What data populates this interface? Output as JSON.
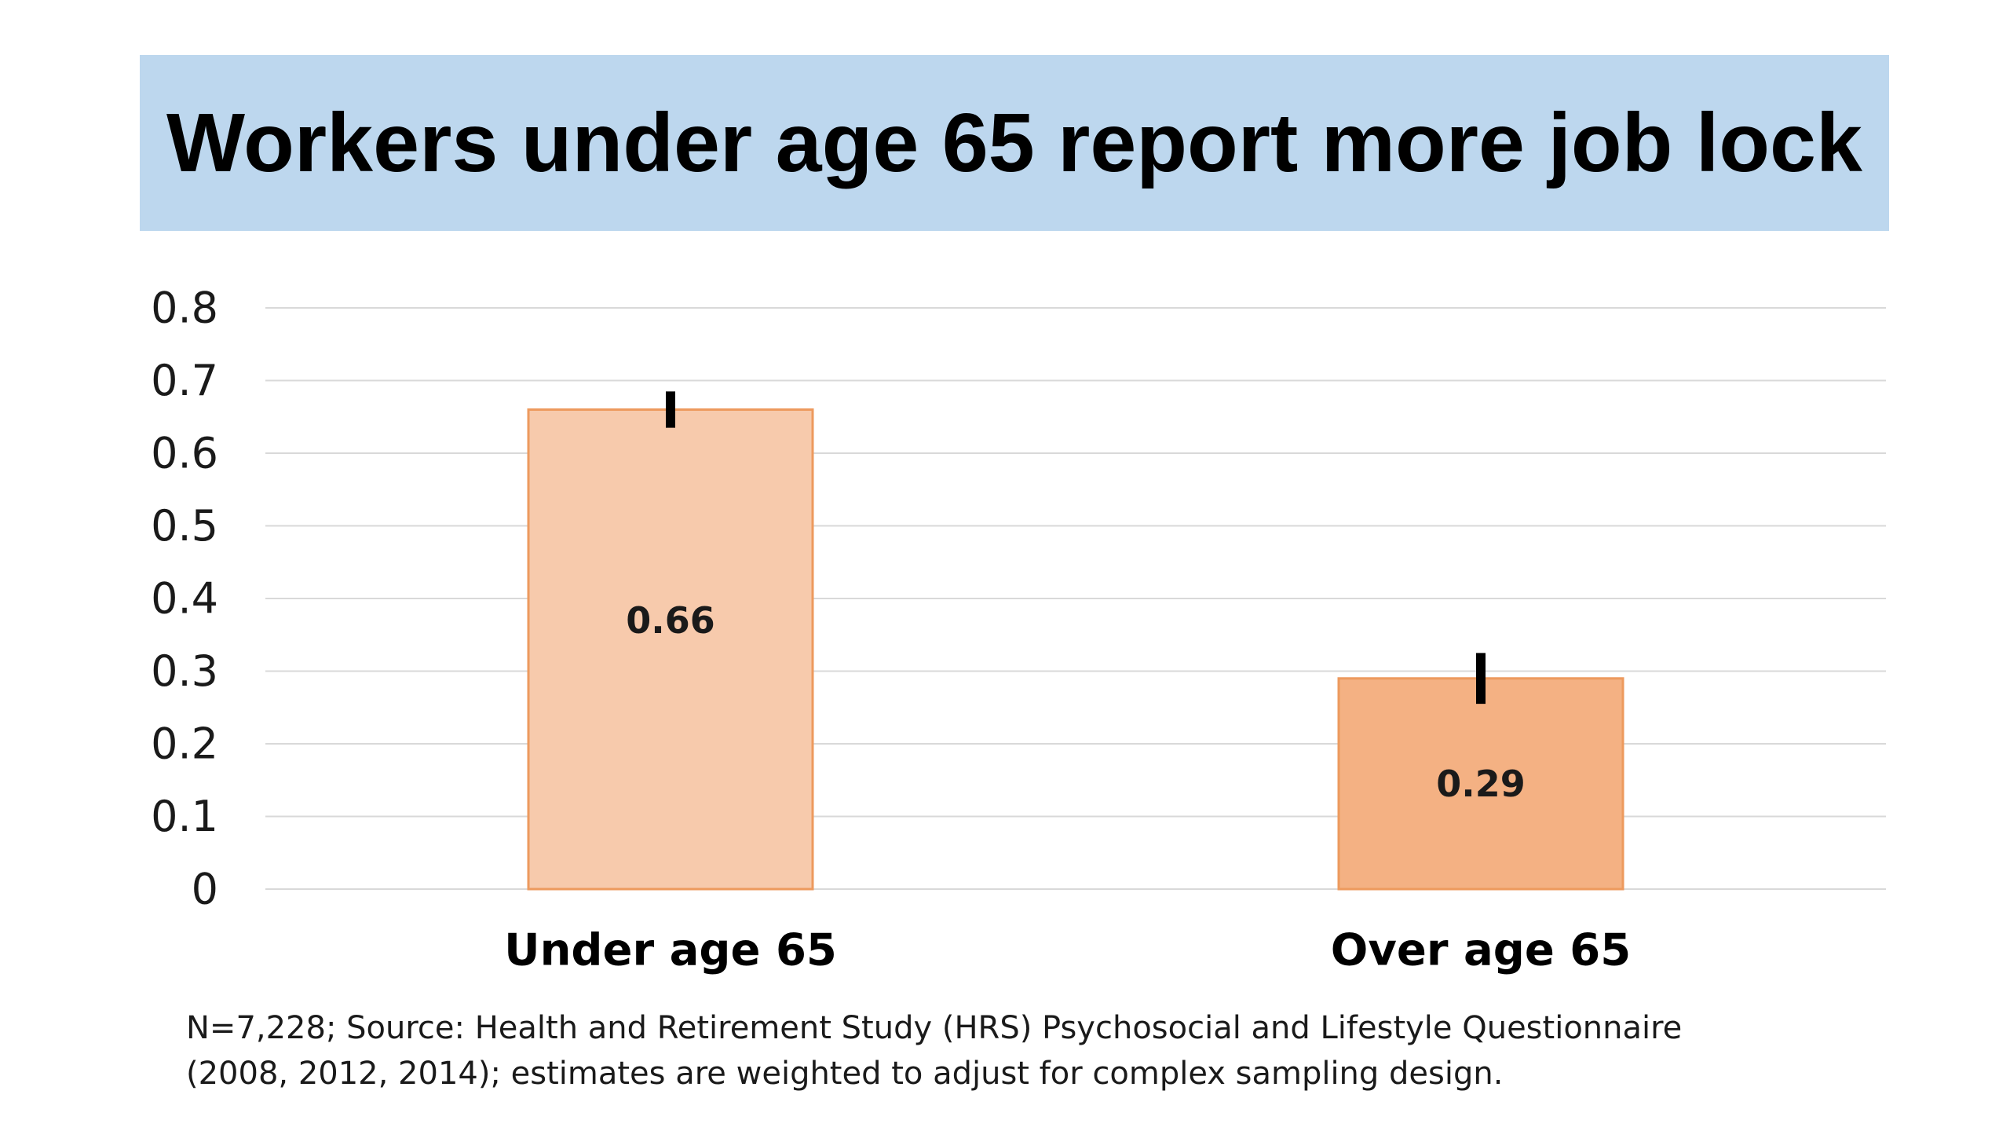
{
  "title": "Workers under age 65 report more job lock",
  "chart_data": {
    "type": "bar",
    "categories": [
      "Under age 65",
      "Over age 65"
    ],
    "values": [
      0.66,
      0.29
    ],
    "data_labels": [
      "0.66",
      "0.29"
    ],
    "error_bars": [
      {
        "low": 0.635,
        "high": 0.685
      },
      {
        "low": 0.255,
        "high": 0.325
      }
    ],
    "bar_colors": [
      "#f7caac",
      "#f4b183"
    ],
    "bar_border_color": "#ed9a5e",
    "ylim": [
      0,
      0.8
    ],
    "yticks": [
      0,
      0.1,
      0.2,
      0.3,
      0.4,
      0.5,
      0.6,
      0.7,
      0.8
    ],
    "ytick_labels": [
      "0",
      "0.1",
      "0.2",
      "0.3",
      "0.4",
      "0.5",
      "0.6",
      "0.7",
      "0.8"
    ],
    "grid": true,
    "xlabel": "",
    "ylabel": ""
  },
  "source_note": {
    "line1": "N=7,228; Source: Health and Retirement Study (HRS) Psychosocial and Lifestyle Questionnaire",
    "line2": "(2008, 2012, 2014); estimates are weighted to adjust for complex sampling design."
  },
  "colors": {
    "banner": "#bdd7ee",
    "gridline": "#d9d9d9",
    "error_bar": "#000000"
  }
}
